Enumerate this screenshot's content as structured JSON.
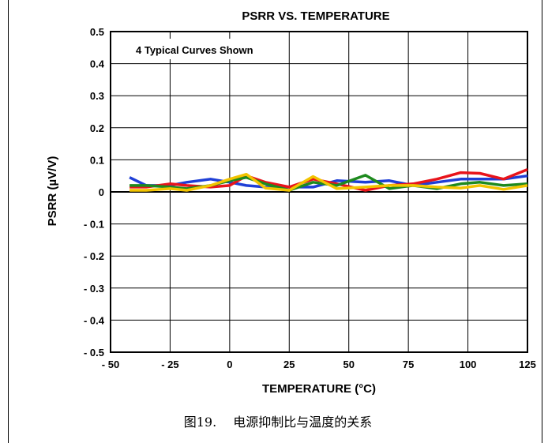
{
  "chart_data": {
    "type": "line",
    "title": "PSRR VS. TEMPERATURE",
    "xlabel": "TEMPERATURE (°C)",
    "ylabel": "PSRR (µV/V)",
    "xlim": [
      -50,
      125
    ],
    "ylim": [
      -0.5,
      0.5
    ],
    "x_ticks": [
      "- 50",
      "- 25",
      "0",
      "25",
      "50",
      "75",
      "100",
      "125"
    ],
    "y_ticks": [
      "0.5",
      "0.4",
      "0.3",
      "0.2",
      "0.1",
      "0",
      "- 0.1",
      "- 0.2",
      "- 0.3",
      "- 0.4",
      "- 0.5"
    ],
    "annotation": "4 Typical Curves Shown",
    "grid": true,
    "x": [
      -42,
      -35,
      -25,
      -18,
      -8,
      0,
      7,
      15,
      25,
      35,
      45,
      57,
      67,
      77,
      87,
      97,
      105,
      115,
      125
    ],
    "series": [
      {
        "color": "#1f3fd6",
        "values": [
          0.045,
          0.02,
          0.02,
          0.03,
          0.04,
          0.03,
          0.02,
          0.015,
          0.015,
          0.015,
          0.035,
          0.03,
          0.035,
          0.02,
          0.03,
          0.04,
          0.04,
          0.04,
          0.05
        ]
      },
      {
        "color": "#e8141b",
        "values": [
          0.015,
          0.015,
          0.025,
          0.02,
          0.015,
          0.02,
          0.05,
          0.03,
          0.015,
          0.04,
          0.025,
          0.005,
          0.02,
          0.025,
          0.04,
          0.06,
          0.058,
          0.04,
          0.07
        ]
      },
      {
        "color": "#1e8a1e",
        "values": [
          0.02,
          0.02,
          0.015,
          0.01,
          0.02,
          0.035,
          0.045,
          0.025,
          0.005,
          0.03,
          0.02,
          0.052,
          0.01,
          0.02,
          0.01,
          0.025,
          0.03,
          0.02,
          0.025
        ]
      },
      {
        "color": "#f2c400",
        "values": [
          0.005,
          0.005,
          0.01,
          0.005,
          0.02,
          0.04,
          0.055,
          0.012,
          0.005,
          0.048,
          0.01,
          0.015,
          0.02,
          0.02,
          0.015,
          0.012,
          0.02,
          0.008,
          0.02
        ]
      }
    ]
  },
  "caption": "图19.　 电源抑制比与温度的关系"
}
